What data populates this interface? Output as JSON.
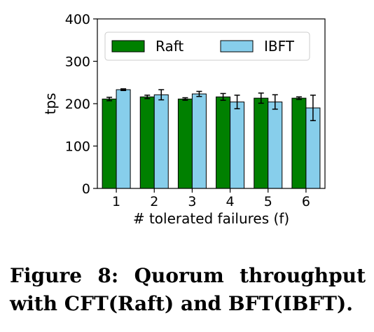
{
  "chart_data": {
    "type": "bar",
    "categories": [
      "1",
      "2",
      "3",
      "4",
      "5",
      "6"
    ],
    "series": [
      {
        "name": "Raft",
        "color": "#008000",
        "values": [
          211,
          216,
          211,
          216,
          213,
          213
        ],
        "errors": [
          4,
          4,
          3,
          8,
          12,
          3
        ]
      },
      {
        "name": "IBFT",
        "color": "#87ceeb",
        "values": [
          233,
          221,
          223,
          204,
          204,
          190
        ],
        "errors": [
          2,
          12,
          6,
          16,
          17,
          30
        ]
      }
    ],
    "xlabel": "# tolerated failures (f)",
    "ylabel": "tps",
    "ylim": [
      0,
      400
    ],
    "yticks": [
      0,
      100,
      200,
      300,
      400
    ],
    "legend": "top-center",
    "grid": false
  },
  "caption": "Figure 8: Quorum throughput with CFT(Raft) and BFT(IBFT)."
}
